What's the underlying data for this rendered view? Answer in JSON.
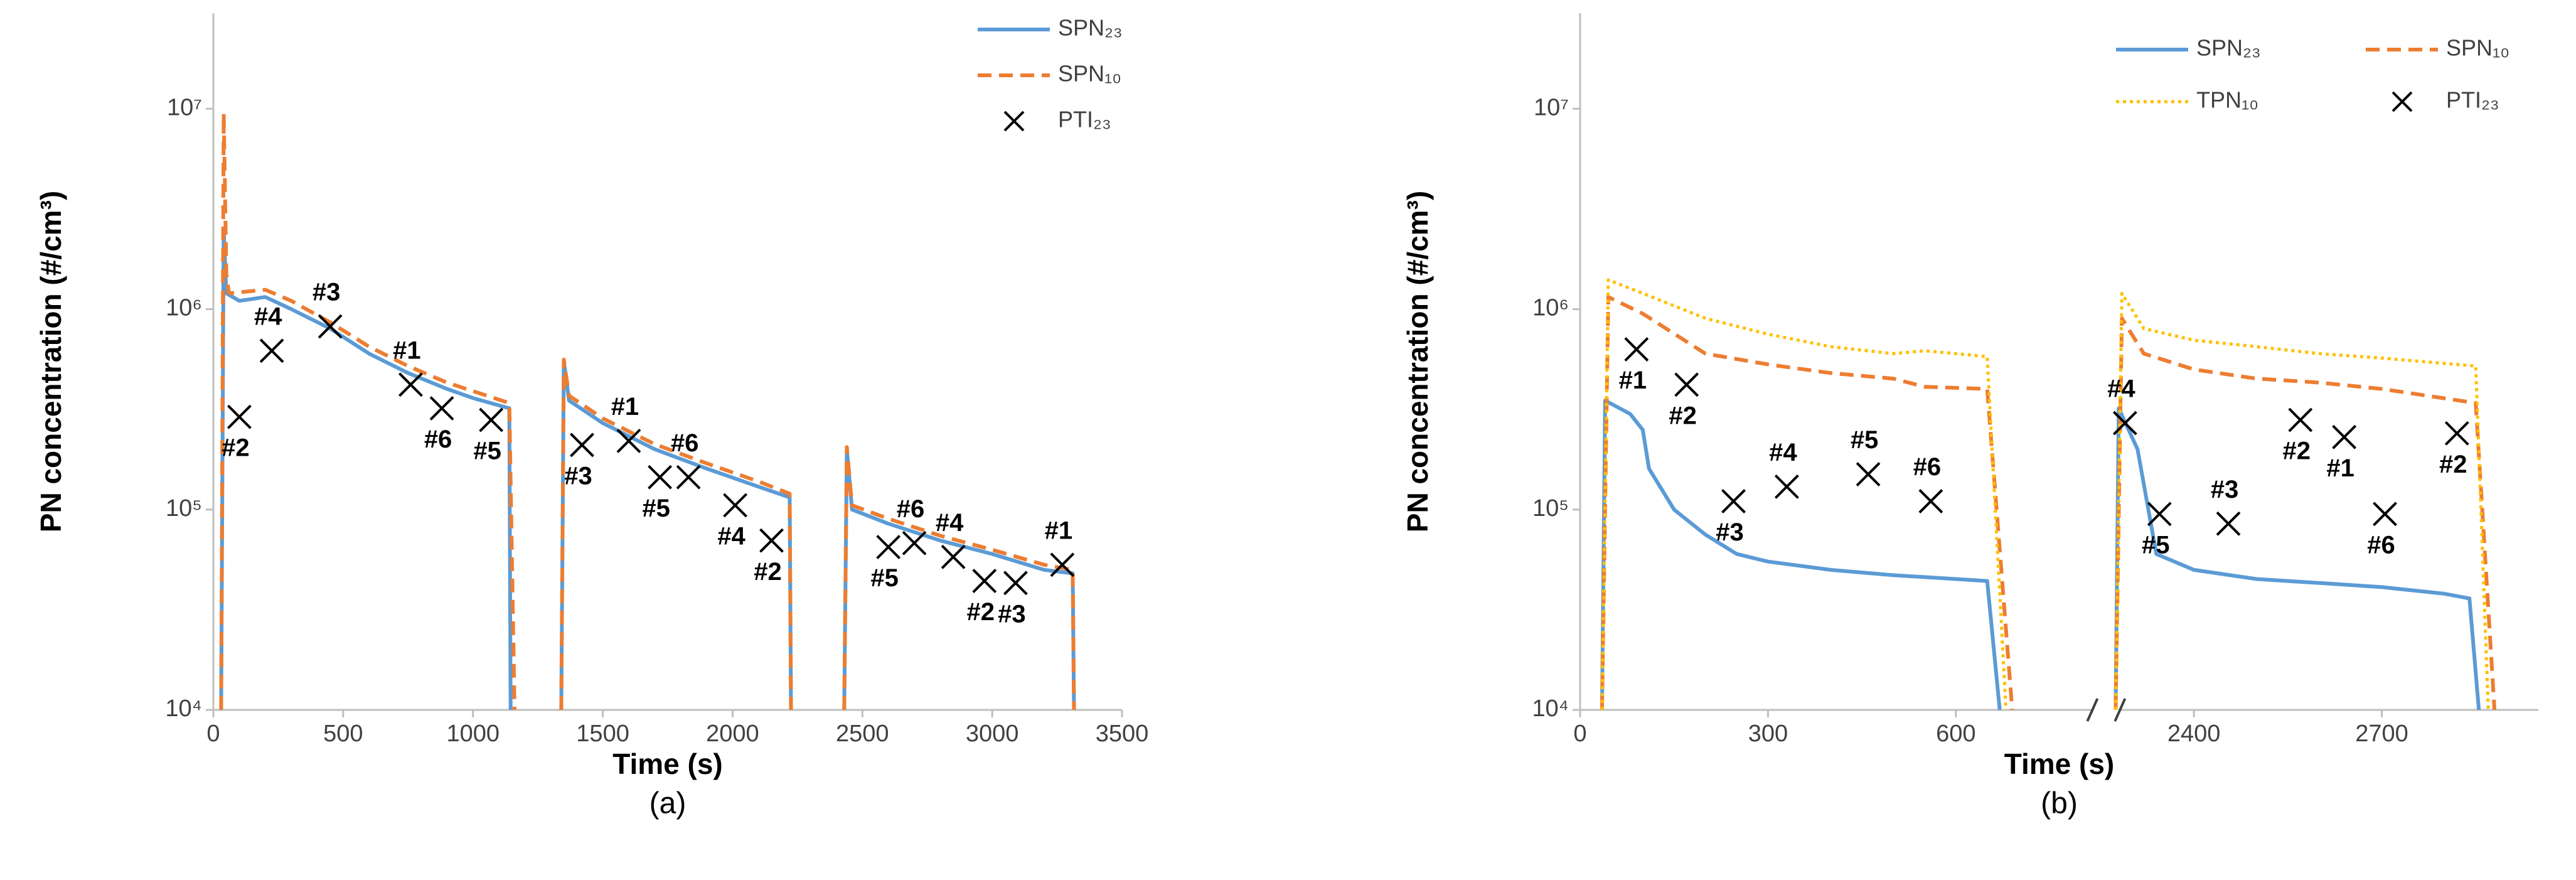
{
  "chart_data": [
    {
      "type": "line",
      "caption": "(a)",
      "xlabel": "Time (s)",
      "ylabel": "PN concentration (#/cm³)",
      "log_y": true,
      "xlim": [
        0,
        3500
      ],
      "xticks": [
        0,
        500,
        1000,
        1500,
        2000,
        2500,
        3000,
        3500
      ],
      "ylim": [
        10000,
        30000000
      ],
      "yticks": [
        {
          "value": 10000,
          "label": "10⁴"
        },
        {
          "value": 100000,
          "label": "10⁵"
        },
        {
          "value": 1000000,
          "label": "10⁶"
        },
        {
          "value": 10000000,
          "label": "10⁷"
        }
      ],
      "legend": "top-right",
      "series": [
        {
          "name": "SPN₂₃",
          "color": "#5b9bd5",
          "style": "solid",
          "x": [
            30,
            40,
            50,
            100,
            200,
            300,
            450,
            600,
            750,
            900,
            1000,
            1140,
            1145,
            null,
            1340,
            1350,
            1370,
            1500,
            1700,
            1900,
            2100,
            2220,
            2225,
            null,
            2430,
            2440,
            2460,
            2600,
            2800,
            3000,
            3200,
            3310,
            3315
          ],
          "values": [
            10000,
            2500000,
            1200000,
            1100000,
            1150000,
            1000000,
            800000,
            600000,
            480000,
            400000,
            360000,
            320000,
            10000,
            null,
            10000,
            550000,
            350000,
            270000,
            200000,
            160000,
            130000,
            115000,
            10000,
            null,
            10000,
            200000,
            100000,
            85000,
            70000,
            60000,
            50000,
            48000,
            10000
          ]
        },
        {
          "name": "SPN₁₀",
          "color": "#ed7d31",
          "style": "dashed",
          "x": [
            30,
            40,
            50,
            60,
            200,
            300,
            450,
            600,
            750,
            900,
            1000,
            1140,
            1160,
            null,
            1340,
            1350,
            1370,
            1500,
            1700,
            1900,
            2100,
            2220,
            2225,
            null,
            2430,
            2440,
            2460,
            2600,
            2800,
            3000,
            3200,
            3310,
            3315
          ],
          "values": [
            10000,
            9500000,
            1500000,
            1200000,
            1250000,
            1100000,
            860000,
            650000,
            520000,
            430000,
            390000,
            340000,
            10000,
            null,
            10000,
            560000,
            370000,
            285000,
            212000,
            170000,
            138000,
            120000,
            10000,
            null,
            10000,
            205000,
            105000,
            90000,
            74000,
            63000,
            53000,
            50000,
            10000
          ]
        },
        {
          "name": "PTI₂₃",
          "color": "#000000",
          "marker": "x",
          "x": [
            100,
            225,
            450,
            760,
            880,
            1070,
            1420,
            1600,
            1720,
            1830,
            2010,
            2150,
            2600,
            2700,
            2850,
            2970,
            3090,
            3270
          ],
          "values": [
            290000,
            620000,
            820000,
            420000,
            320000,
            280000,
            210000,
            220000,
            145000,
            145000,
            105000,
            70000,
            65000,
            68000,
            58000,
            44000,
            43000,
            53000
          ],
          "labels": [
            "#2",
            "#4",
            "#3",
            "#1",
            "#6",
            "#5",
            "#3",
            "#1",
            "#5",
            "#6",
            "#4",
            "#2",
            "#5",
            "#6",
            "#4",
            "#2",
            "#3",
            "#1"
          ]
        }
      ]
    },
    {
      "type": "line",
      "caption": "(b)",
      "xlabel": "Time (s)",
      "ylabel": "PN concentration (#/cm³)",
      "log_y": true,
      "xlim": [
        0,
        2950
      ],
      "xbreak": [
        820,
        2280
      ],
      "xticks": [
        0,
        300,
        600,
        2400,
        2700
      ],
      "ylim": [
        10000,
        30000000
      ],
      "yticks": [
        {
          "value": 10000,
          "label": "10⁴"
        },
        {
          "value": 100000,
          "label": "10⁵"
        },
        {
          "value": 1000000,
          "label": "10⁶"
        },
        {
          "value": 10000000,
          "label": "10⁷"
        }
      ],
      "legend": "top-right",
      "series": [
        {
          "name": "SPN₂₃",
          "color": "#5b9bd5",
          "style": "solid",
          "x": [
            35,
            40,
            80,
            100,
            110,
            150,
            200,
            250,
            300,
            400,
            500,
            600,
            650,
            670,
            null,
            2275,
            2280,
            2310,
            2340,
            2400,
            2500,
            2600,
            2700,
            2800,
            2840,
            2855
          ],
          "values": [
            10000,
            350000,
            300000,
            250000,
            160000,
            100000,
            75000,
            60000,
            55000,
            50000,
            47000,
            45000,
            44000,
            10000,
            null,
            10000,
            320000,
            200000,
            60000,
            50000,
            45000,
            43000,
            41000,
            38000,
            36000,
            10000
          ]
        },
        {
          "name": "SPN₁₀",
          "color": "#ed7d31",
          "style": "dashed",
          "x": [
            35,
            45,
            100,
            200,
            300,
            400,
            500,
            550,
            650,
            690,
            null,
            2275,
            2285,
            2320,
            2400,
            2500,
            2600,
            2700,
            2850,
            2880
          ],
          "values": [
            10000,
            1150000,
            950000,
            600000,
            530000,
            480000,
            450000,
            410000,
            400000,
            10000,
            null,
            10000,
            900000,
            600000,
            500000,
            450000,
            430000,
            400000,
            340000,
            10000
          ]
        },
        {
          "name": "TPN₁₀",
          "color": "#ffc000",
          "style": "dotted",
          "x": [
            35,
            45,
            100,
            200,
            300,
            400,
            500,
            550,
            650,
            680,
            null,
            2275,
            2285,
            2320,
            2400,
            2500,
            2600,
            2700,
            2850,
            2870
          ],
          "values": [
            10000,
            1400000,
            1200000,
            900000,
            750000,
            650000,
            600000,
            620000,
            580000,
            10000,
            null,
            10000,
            1200000,
            800000,
            700000,
            650000,
            600000,
            570000,
            520000,
            10000
          ]
        },
        {
          "name": "PTI₂₃",
          "color": "#000000",
          "marker": "x",
          "x": [
            90,
            170,
            245,
            330,
            460,
            560,
            2290,
            2345,
            2455,
            2570,
            2640,
            2705,
            2820
          ],
          "values": [
            630000,
            420000,
            110000,
            130000,
            150000,
            110000,
            270000,
            95000,
            85000,
            280000,
            230000,
            95000,
            240000
          ],
          "labels": [
            "#1",
            "#2",
            "#3",
            "#4",
            "#5",
            "#6",
            "#4",
            "#5",
            "#3",
            "#2",
            "#1",
            "#6",
            "#2"
          ]
        }
      ]
    }
  ]
}
